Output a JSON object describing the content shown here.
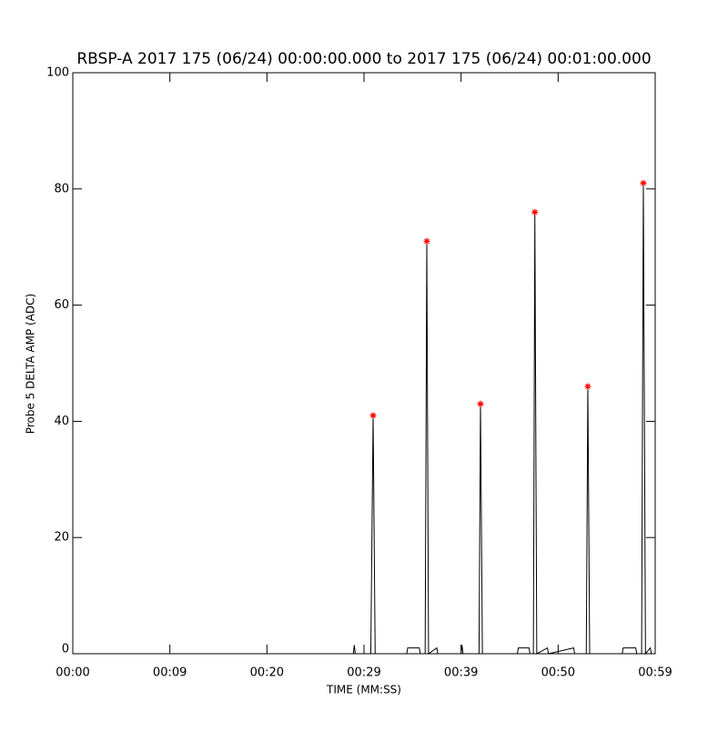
{
  "chart_data": {
    "type": "line",
    "title": "RBSP-A 2017 175 (06/24) 00:00:00.000 to 2017 175 (06/24) 00:01:00.000",
    "xlabel": "TIME (MM:SS)",
    "ylabel": "Probe 5 DELTA AMP (ADC)",
    "xlim": [
      0,
      60
    ],
    "xticks": [
      {
        "value": 0,
        "label": "00:00"
      },
      {
        "value": 10,
        "label": "00:09"
      },
      {
        "value": 20,
        "label": "00:20"
      },
      {
        "value": 30,
        "label": "00:29"
      },
      {
        "value": 40,
        "label": "00:39"
      },
      {
        "value": 50,
        "label": "00:50"
      },
      {
        "value": 60,
        "label": "00:59"
      }
    ],
    "ylim": [
      0,
      100
    ],
    "yticks": [
      0,
      20,
      40,
      60,
      80,
      100
    ],
    "grid": false,
    "x": [
      0,
      28.9,
      29.0,
      29.1,
      30.7,
      30.94,
      31.15,
      34.4,
      34.5,
      35.7,
      35.8,
      36.3,
      36.47,
      36.65,
      37.5,
      37.6,
      40.0,
      40.1,
      40.2,
      41.85,
      42.0,
      42.2,
      45.8,
      45.9,
      47.0,
      47.1,
      47.45,
      47.6,
      47.8,
      48.9,
      49.0,
      51.6,
      51.7,
      52.9,
      53.06,
      53.25,
      56.6,
      56.7,
      58.0,
      58.1,
      58.6,
      58.78,
      59.0,
      59.5,
      59.6,
      60
    ],
    "series": [
      {
        "color": "#000000",
        "values": [
          0,
          0,
          1.5,
          0,
          0,
          41,
          0,
          0,
          1,
          1,
          0,
          0,
          71,
          0,
          1,
          0,
          0,
          1.5,
          0,
          0,
          43,
          0,
          0,
          1,
          1,
          0,
          0,
          76,
          0,
          1,
          0,
          1,
          0,
          0,
          46,
          0,
          0,
          1,
          1,
          0,
          0,
          81,
          0,
          1,
          0,
          0
        ]
      },
      {
        "type": "scatter",
        "marker": "asterisk",
        "color": "#ff0000",
        "x": [
          30.94,
          36.47,
          42.0,
          47.6,
          53.06,
          58.78
        ],
        "values": [
          41,
          71,
          43,
          76,
          46,
          81
        ]
      }
    ]
  }
}
